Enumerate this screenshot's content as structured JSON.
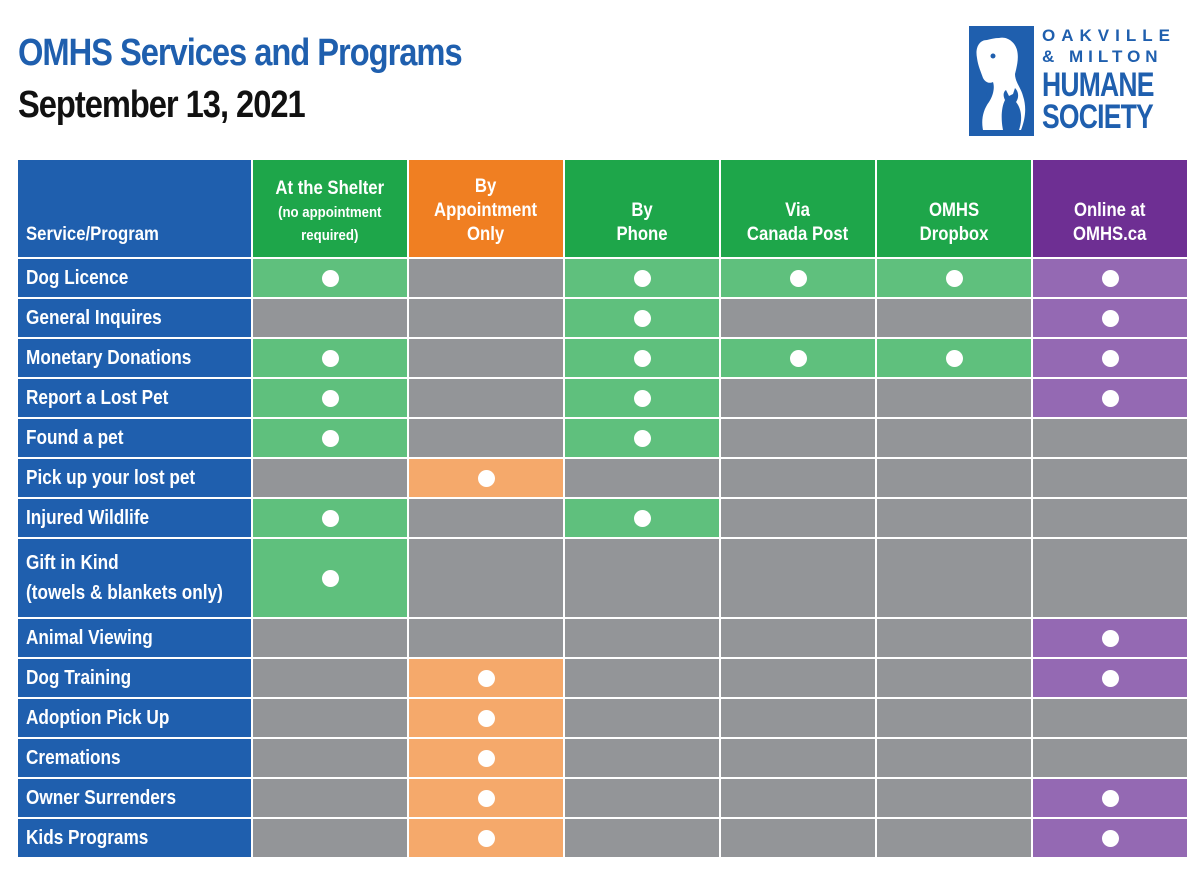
{
  "title": "OMHS Services and Programs",
  "date": "September 13, 2021",
  "logo": {
    "line1": "OAKVILLE",
    "line2": "& MILTON",
    "line3": "HUMANE",
    "line4": "SOCIETY"
  },
  "colors": {
    "brand_blue": "#1f5fae",
    "shelter_green": "#1ea64a",
    "appointment_orange": "#f07f22",
    "online_purple": "#6e2f93",
    "unavailable_gray": "#939598"
  },
  "table": {
    "header": {
      "service": "Service/Program",
      "shelter_title": "At the Shelter",
      "shelter_note_1": "(no appointment",
      "shelter_note_2": "required)",
      "appointment_1": "By",
      "appointment_2": "Appointment",
      "appointment_3": "Only",
      "phone_1": "By",
      "phone_2": "Phone",
      "post_1": "Via",
      "post_2": "Canada Post",
      "dropbox_1": "OMHS",
      "dropbox_2": "Dropbox",
      "online_1": "Online at",
      "online_2": "OMHS.ca"
    },
    "rows": [
      {
        "label": "Dog Licence",
        "available": [
          true,
          false,
          true,
          true,
          true,
          true
        ]
      },
      {
        "label": "General Inquires",
        "available": [
          false,
          false,
          true,
          false,
          false,
          true
        ]
      },
      {
        "label": "Monetary Donations",
        "available": [
          true,
          false,
          true,
          true,
          true,
          true
        ]
      },
      {
        "label": "Report a Lost Pet",
        "available": [
          true,
          false,
          true,
          false,
          false,
          true
        ]
      },
      {
        "label": "Found a pet",
        "available": [
          true,
          false,
          true,
          false,
          false,
          false
        ]
      },
      {
        "label": "Pick up your lost pet",
        "available": [
          false,
          true,
          false,
          false,
          false,
          false
        ]
      },
      {
        "label": "Injured Wildlife",
        "available": [
          true,
          false,
          true,
          false,
          false,
          false
        ]
      },
      {
        "label": "Gift in Kind",
        "label_line2": "(towels & blankets only)",
        "available": [
          true,
          false,
          false,
          false,
          false,
          false
        ]
      },
      {
        "label": "Animal Viewing",
        "available": [
          false,
          false,
          false,
          false,
          false,
          true
        ]
      },
      {
        "label": "Dog Training",
        "available": [
          false,
          true,
          false,
          false,
          false,
          true
        ]
      },
      {
        "label": "Adoption Pick Up",
        "available": [
          false,
          true,
          false,
          false,
          false,
          false
        ]
      },
      {
        "label": "Cremations",
        "available": [
          false,
          true,
          false,
          false,
          false,
          false
        ]
      },
      {
        "label": "Owner Surrenders",
        "available": [
          false,
          true,
          false,
          false,
          false,
          true
        ]
      },
      {
        "label": "Kids Programs",
        "available": [
          false,
          true,
          false,
          false,
          false,
          true
        ]
      }
    ]
  }
}
